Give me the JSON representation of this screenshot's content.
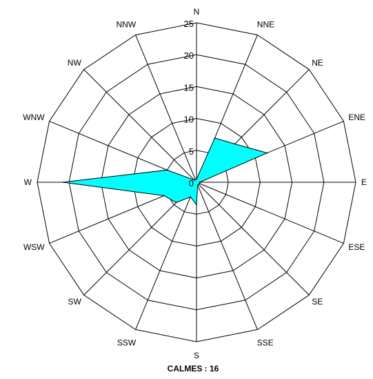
{
  "chart_data": {
    "type": "radar",
    "directions": [
      "N",
      "NNE",
      "NE",
      "ENE",
      "E",
      "ESE",
      "SE",
      "SSE",
      "S",
      "SSW",
      "SW",
      "WSW",
      "W",
      "WNW",
      "NW",
      "NNW"
    ],
    "ticks": [
      "0",
      "5",
      "10",
      "15",
      "20",
      "25"
    ],
    "rlim": [
      0,
      25
    ],
    "series": [
      {
        "values": [
          0.5,
          7.5,
          8.5,
          12,
          0.5,
          0.5,
          0.5,
          0.5,
          3.5,
          2.5,
          4.5,
          5.5,
          21,
          5,
          0.5,
          0.5
        ],
        "fill": "#00ffff",
        "stroke": "#000000"
      }
    ],
    "grid": true,
    "footer": "CALMES : 16"
  }
}
